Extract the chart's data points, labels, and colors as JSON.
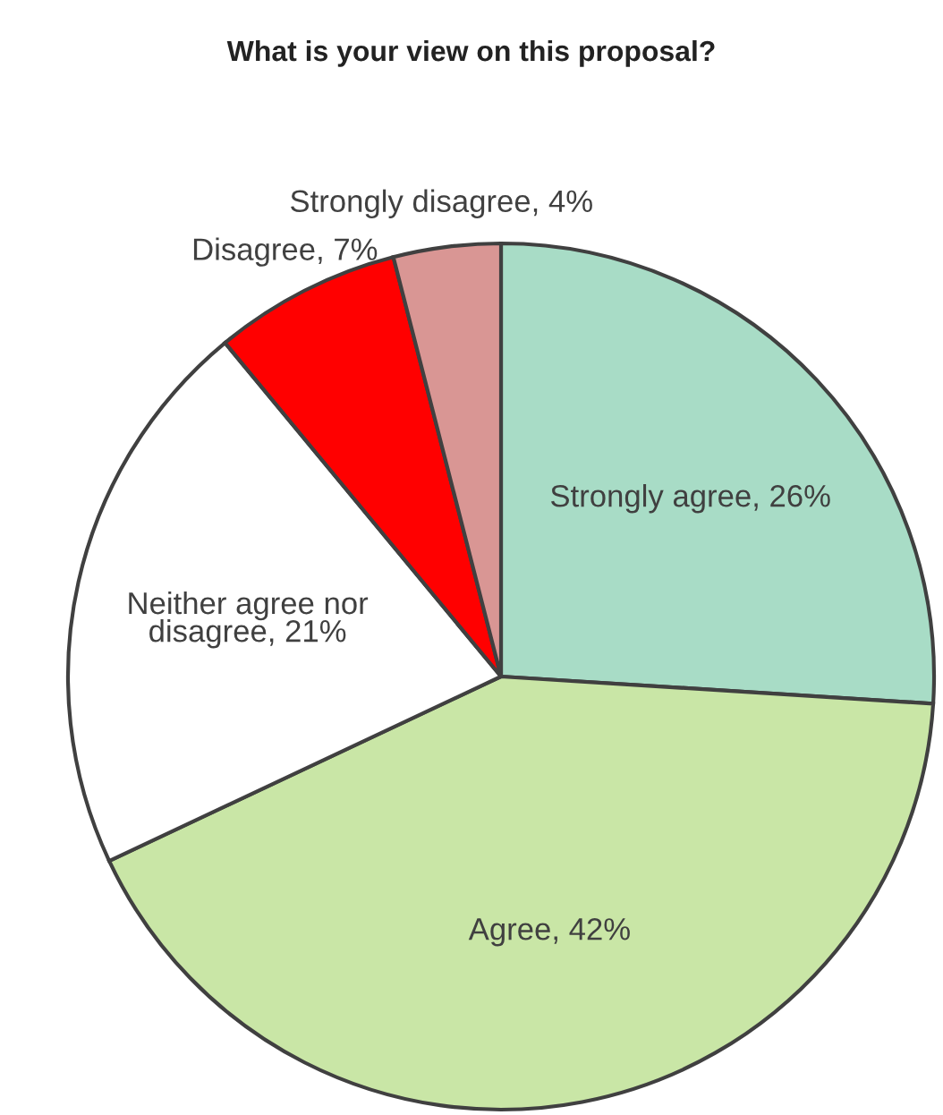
{
  "chart_data": {
    "type": "pie",
    "title": "What is your view on this proposal?",
    "categories": [
      "Strongly agree",
      "Agree",
      "Neither agree nor\ndisagree",
      "Disagree",
      "Strongly disagree"
    ],
    "values": [
      26,
      42,
      21,
      7,
      4
    ],
    "colors": [
      "#a8dcc6",
      "#c9e6a6",
      "#ffffff",
      "#ff0000",
      "#d99694"
    ],
    "value_labels": [
      "26%",
      "42%",
      "21%",
      "7%",
      "4%"
    ],
    "legend": false
  }
}
